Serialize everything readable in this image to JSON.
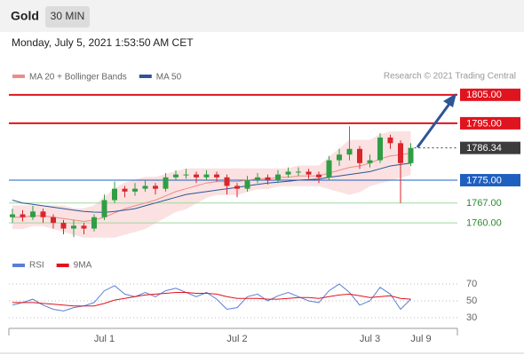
{
  "chart_data": [
    {
      "type": "candlestick",
      "title": "Gold",
      "timeframe": "30 MIN",
      "subtitle": "Monday, July 5, 2021 1:53:50 AM CET",
      "source": "Research © 2021 Trading Central",
      "categories": [
        null,
        null,
        null,
        null,
        null,
        null,
        null,
        null,
        null,
        "Jul 1",
        null,
        null,
        null,
        null,
        null,
        null,
        null,
        null,
        null,
        null,
        null,
        null,
        "Jul 2",
        null,
        null,
        null,
        null,
        null,
        null,
        null,
        null,
        null,
        null,
        null,
        null,
        "Jul 3",
        null,
        null,
        null,
        null,
        "Jul 9",
        null
      ],
      "ohlc": {
        "open": [
          1762,
          1763,
          1762,
          1764,
          1762,
          1760,
          1758,
          1759,
          1758,
          1762,
          1768,
          1772,
          1771,
          1772,
          1773,
          1772,
          1776,
          1777,
          1777,
          1776,
          1777,
          1776,
          1773,
          1772,
          1775,
          1776,
          1775,
          1777,
          1778,
          1778,
          1777,
          1776,
          1782,
          1784,
          1786,
          1781,
          1782,
          1790,
          1788,
          1781,
          null,
          null
        ],
        "high": [
          1765,
          1764.5,
          1766,
          1765,
          1763,
          1761,
          1761,
          1760,
          1763,
          1770,
          1774.5,
          1773,
          1774,
          1775,
          1774,
          1777.5,
          1778.5,
          1779,
          1778,
          1778.5,
          1778,
          1777,
          1774,
          1776.5,
          1777.5,
          1777,
          1778.5,
          1779.5,
          1779.5,
          1779,
          1778,
          1783.5,
          1786,
          1794,
          1787,
          1784,
          1791.5,
          1791,
          1789,
          1788,
          null,
          null
        ],
        "low": [
          1760,
          1760.5,
          1761,
          1760,
          1758,
          1756,
          1755,
          1756,
          1757,
          1761,
          1767,
          1769,
          1769.5,
          1771,
          1770,
          1771,
          1775,
          1775.5,
          1774,
          1775,
          1774.5,
          1770,
          1769,
          1771,
          1774,
          1773.5,
          1774,
          1776,
          1776.5,
          1775.5,
          1774,
          1775,
          1780,
          1782,
          1779,
          1779.5,
          1781,
          1786,
          1767,
          1780,
          null,
          null
        ],
        "close": [
          1763,
          1762,
          1764,
          1762,
          1760,
          1758,
          1759,
          1758,
          1762,
          1768,
          1772,
          1771,
          1772,
          1773,
          1772,
          1776,
          1777,
          1777,
          1776,
          1777,
          1776,
          1773,
          1772,
          1775,
          1776,
          1775,
          1777,
          1778,
          1778,
          1777,
          1776,
          1782,
          1784,
          1786,
          1781,
          1782,
          1790,
          1788,
          1781,
          1786.34,
          null,
          null
        ]
      },
      "up_color": "#2f9e44",
      "down_color": "#d9262b",
      "overlays": [
        {
          "name": "MA 20 + Bollinger Bands",
          "color": "#f08a8a",
          "band_color": "#fbe1e1",
          "values": [
            1762,
            1762,
            1762.5,
            1762.5,
            1762,
            1761.5,
            1761,
            1760.5,
            1761,
            1762,
            1763.5,
            1765,
            1766,
            1767,
            1768,
            1769.5,
            1771,
            1772,
            1773,
            1774,
            1774.5,
            1774.5,
            1774.5,
            1775,
            1775.5,
            1775.5,
            1776,
            1776,
            1776.5,
            1776.5,
            1776.5,
            1777.5,
            1778.5,
            1779.5,
            1780,
            1781,
            1782.5,
            1783.5,
            1784,
            1784.5,
            null,
            null
          ],
          "upper": [
            1766,
            1766,
            1766,
            1766,
            1766,
            1766,
            1765,
            1765,
            1766,
            1769,
            1772,
            1774,
            1775,
            1776,
            1776,
            1777,
            1778,
            1779,
            1779,
            1779,
            1779,
            1779,
            1779,
            1779,
            1779,
            1779,
            1779,
            1779,
            1780,
            1780,
            1780,
            1783,
            1786,
            1789,
            1789,
            1789,
            1791,
            1792,
            1792,
            1792,
            null,
            null
          ],
          "lower": [
            1758,
            1758,
            1759,
            1759,
            1758,
            1757,
            1756,
            1755,
            1755,
            1755,
            1755,
            1756,
            1757,
            1758,
            1760,
            1762,
            1764,
            1765,
            1767,
            1769,
            1770,
            1770,
            1770,
            1771,
            1772,
            1772,
            1773,
            1773,
            1773,
            1773,
            1773,
            1772,
            1771,
            1770,
            1771,
            1773,
            1774,
            1775,
            1776,
            1777,
            null,
            null
          ]
        },
        {
          "name": "MA 50",
          "color": "#2e5597",
          "values": [
            1768,
            1767,
            1766.5,
            1766,
            1765.5,
            1765,
            1764.5,
            1764,
            1763.8,
            1763.7,
            1764,
            1764.5,
            1765,
            1766,
            1767,
            1768,
            1769,
            1770,
            1770.5,
            1771,
            1771.5,
            1772,
            1772.5,
            1773,
            1773.5,
            1774,
            1774.3,
            1774.6,
            1775,
            1775.2,
            1775.4,
            1776,
            1776.5,
            1777,
            1777.5,
            1778,
            1779,
            1780,
            1780.5,
            1781,
            null,
            null
          ]
        }
      ],
      "levels": [
        {
          "value": 1805,
          "label": "1805.00",
          "color": "#e0141e",
          "boxed": true,
          "dotted": false
        },
        {
          "value": 1795,
          "label": "1795.00",
          "color": "#e0141e",
          "boxed": true,
          "dotted": false
        },
        {
          "value": 1786.34,
          "label": "1786.34",
          "color": "#3c3c3c",
          "boxed": true,
          "dotted": true
        },
        {
          "value": 1775,
          "label": "1775.00",
          "color": "#1f5fbf",
          "boxed": true,
          "dotted": false
        },
        {
          "value": 1767,
          "label": "1767.00",
          "color": "#2e8b2e",
          "line_color": "#9fd89f",
          "boxed": false,
          "dotted": false
        },
        {
          "value": 1760,
          "label": "1760.00",
          "color": "#2e8b2e",
          "line_color": "#9fd89f",
          "boxed": false,
          "dotted": false
        }
      ],
      "ylim": [
        1751,
        1809
      ]
    },
    {
      "type": "line",
      "series": [
        {
          "name": "RSI",
          "color": "#5b7fd6",
          "values": [
            45,
            48,
            52,
            45,
            40,
            38,
            42,
            44,
            48,
            62,
            68,
            58,
            55,
            60,
            55,
            62,
            65,
            60,
            55,
            60,
            52,
            40,
            42,
            55,
            58,
            50,
            56,
            60,
            55,
            50,
            48,
            62,
            70,
            60,
            45,
            50,
            66,
            58,
            40,
            52,
            null,
            null
          ]
        },
        {
          "name": "9MA",
          "color": "#e0141e",
          "values": [
            48,
            48,
            48,
            47,
            46,
            45,
            44,
            44,
            44,
            47,
            51,
            53,
            55,
            57,
            58,
            59,
            60,
            60,
            59,
            59,
            58,
            55,
            53,
            53,
            53,
            52,
            52,
            53,
            54,
            54,
            53,
            55,
            57,
            58,
            56,
            54,
            55,
            56,
            53,
            52,
            null,
            null
          ]
        }
      ],
      "ylim": [
        20,
        82
      ],
      "yticks": [
        30,
        50,
        70
      ],
      "grid": true
    }
  ]
}
